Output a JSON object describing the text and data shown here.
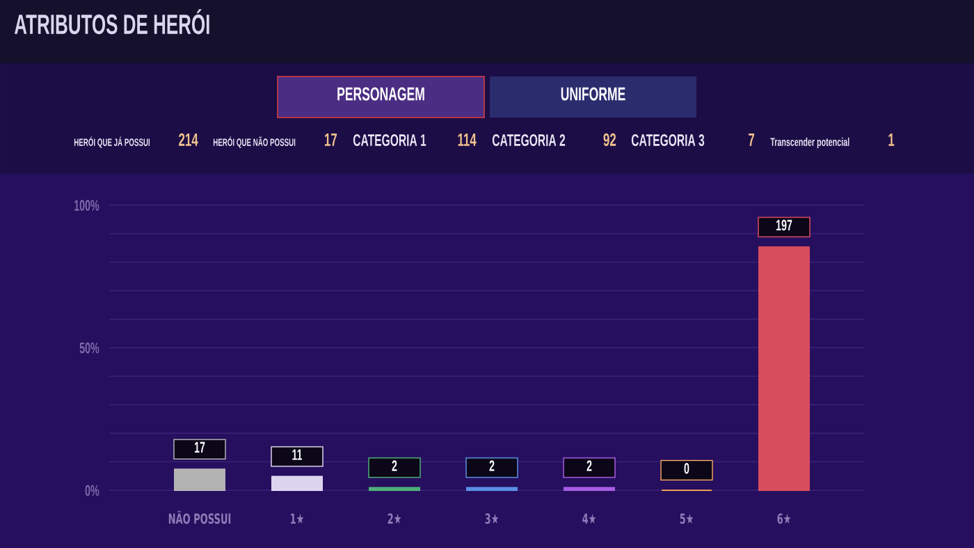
{
  "chart_data": {
    "type": "bar",
    "title": "ATRIBUTOS DE HERÓI",
    "categories": [
      "NÃO POSSUI",
      "1★",
      "2★",
      "3★",
      "4★",
      "5★",
      "6★"
    ],
    "values": [
      7.4,
      4.8,
      0.9,
      0.9,
      0.9,
      0,
      85.3
    ],
    "colors": [
      "#b3b3b3",
      "#ddd5ef",
      "#4fae7a",
      "#5b8fe3",
      "#a65ee2",
      "#eba05a",
      "#d84d5e"
    ],
    "ylim": [
      0,
      100
    ],
    "yticks": [
      {
        "value": 0,
        "label": "0%"
      },
      {
        "value": 10,
        "label": null
      },
      {
        "value": 20,
        "label": null
      },
      {
        "value": 30,
        "label": null
      },
      {
        "value": 40,
        "label": null
      },
      {
        "value": 50,
        "label": "50%"
      },
      {
        "value": 60,
        "label": null
      },
      {
        "value": 70,
        "label": null
      },
      {
        "value": 80,
        "label": null
      },
      {
        "value": 90,
        "label": null
      },
      {
        "value": 100,
        "label": "100%"
      }
    ],
    "grid": "y",
    "annotations": [
      "PERSONAGEM",
      "UNIFORME",
      "HERÓI QUE JÁ POSSUI",
      "214",
      "HERÓI QUE NÃO POSSUI",
      "17",
      "CATEGORIA 1",
      "114",
      "CATEGORIA 2",
      "92",
      "CATEGORIA 3",
      "7",
      "Transcender potencial",
      "1",
      {
        "text": "17",
        "x": "NÃO POSSUI",
        "y": 7.4
      },
      {
        "text": "11",
        "x": "1★",
        "y": 4.8
      },
      {
        "text": "2",
        "x": "2★",
        "y": 0.9
      },
      {
        "text": "2",
        "x": "3★",
        "y": 0.9
      },
      {
        "text": "2",
        "x": "4★",
        "y": 0.9
      },
      {
        "text": "0",
        "x": "5★",
        "y": 0
      },
      {
        "text": "197",
        "x": "6★",
        "y": 85.3
      }
    ]
  }
}
